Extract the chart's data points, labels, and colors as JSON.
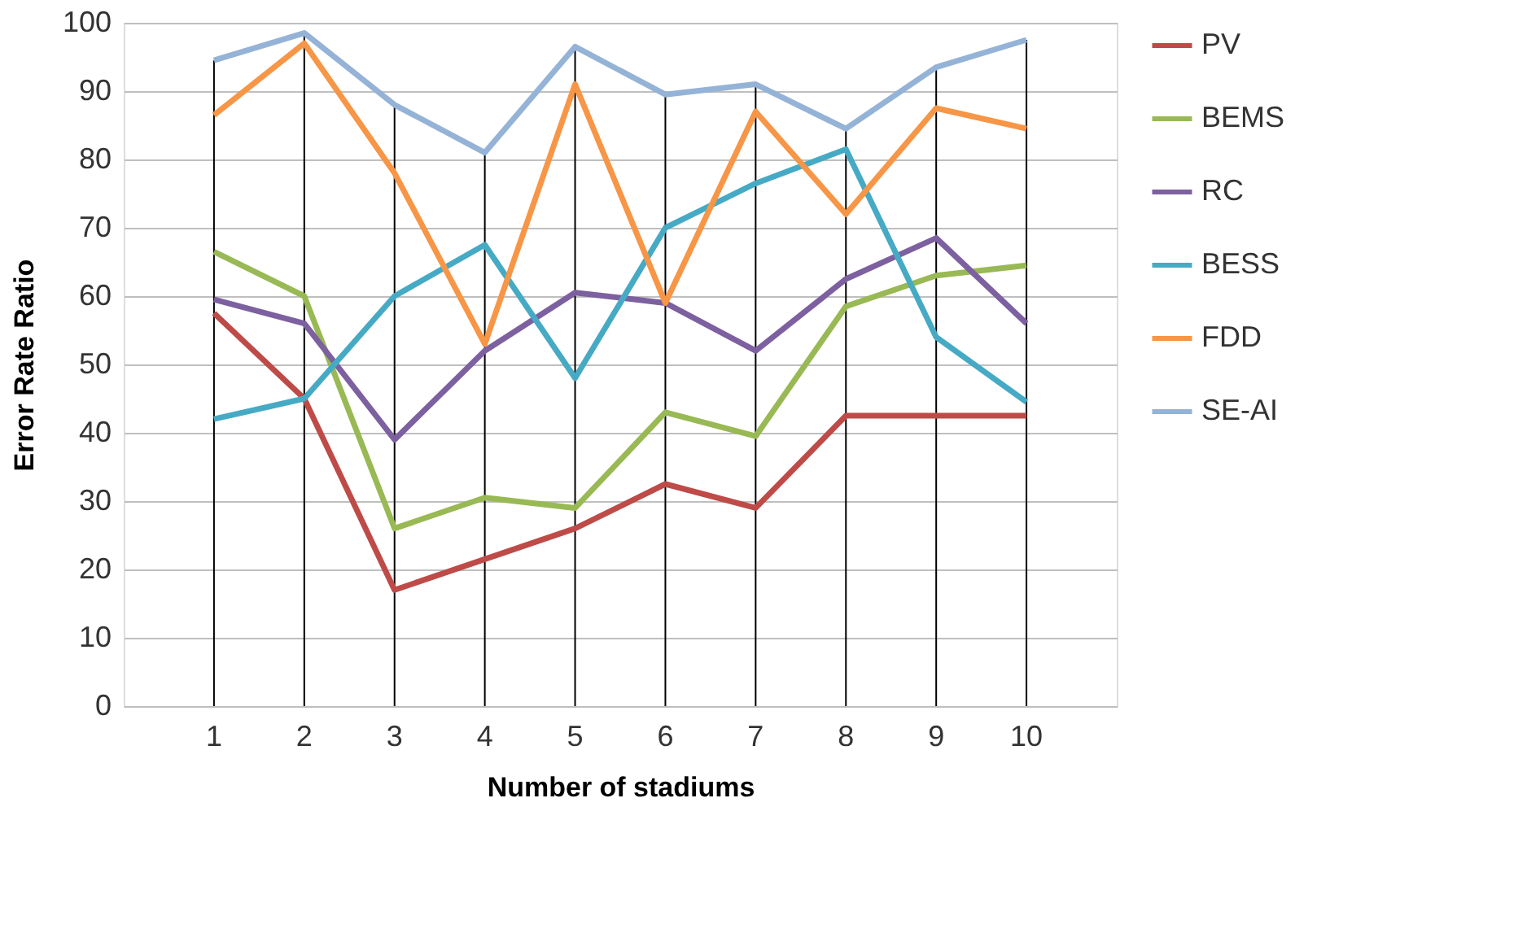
{
  "chart_data": {
    "type": "line",
    "xlabel": "Number of stadiums",
    "ylabel": "Error Rate Ratio",
    "categories": [
      "1",
      "2",
      "3",
      "4",
      "5",
      "6",
      "7",
      "8",
      "9",
      "10"
    ],
    "ylim": [
      0,
      100
    ],
    "yticks": [
      0,
      10,
      20,
      30,
      40,
      50,
      60,
      70,
      80,
      90,
      100
    ],
    "grid": true,
    "legend": "right",
    "marker": "none",
    "line_style": "solid",
    "series": [
      {
        "name": "PV",
        "color": "#be4b48",
        "values": [
          57.5,
          45,
          17,
          21.5,
          26,
          32.5,
          29,
          42.5,
          42.5,
          42.5
        ]
      },
      {
        "name": "BEMS",
        "color": "#98b954",
        "values": [
          66.5,
          60,
          26,
          30.5,
          29,
          43,
          39.5,
          58.5,
          63,
          64.5
        ]
      },
      {
        "name": "RC",
        "color": "#7d60a0",
        "values": [
          59.5,
          56,
          39,
          52,
          60.5,
          59,
          52,
          62.5,
          68.5,
          56
        ]
      },
      {
        "name": "BESS",
        "color": "#46aac5",
        "values": [
          42,
          45,
          60,
          67.5,
          48,
          70,
          76.5,
          81.5,
          54,
          44.5
        ]
      },
      {
        "name": "FDD",
        "color": "#f79646",
        "values": [
          86.5,
          97,
          78,
          53,
          91,
          59,
          87,
          72,
          87.5,
          84.5
        ]
      },
      {
        "name": "SE-AI",
        "color": "#95b3d7",
        "values": [
          94.5,
          98.5,
          88,
          81,
          96.5,
          89.5,
          91,
          84.5,
          93.5,
          97.5
        ]
      }
    ]
  }
}
